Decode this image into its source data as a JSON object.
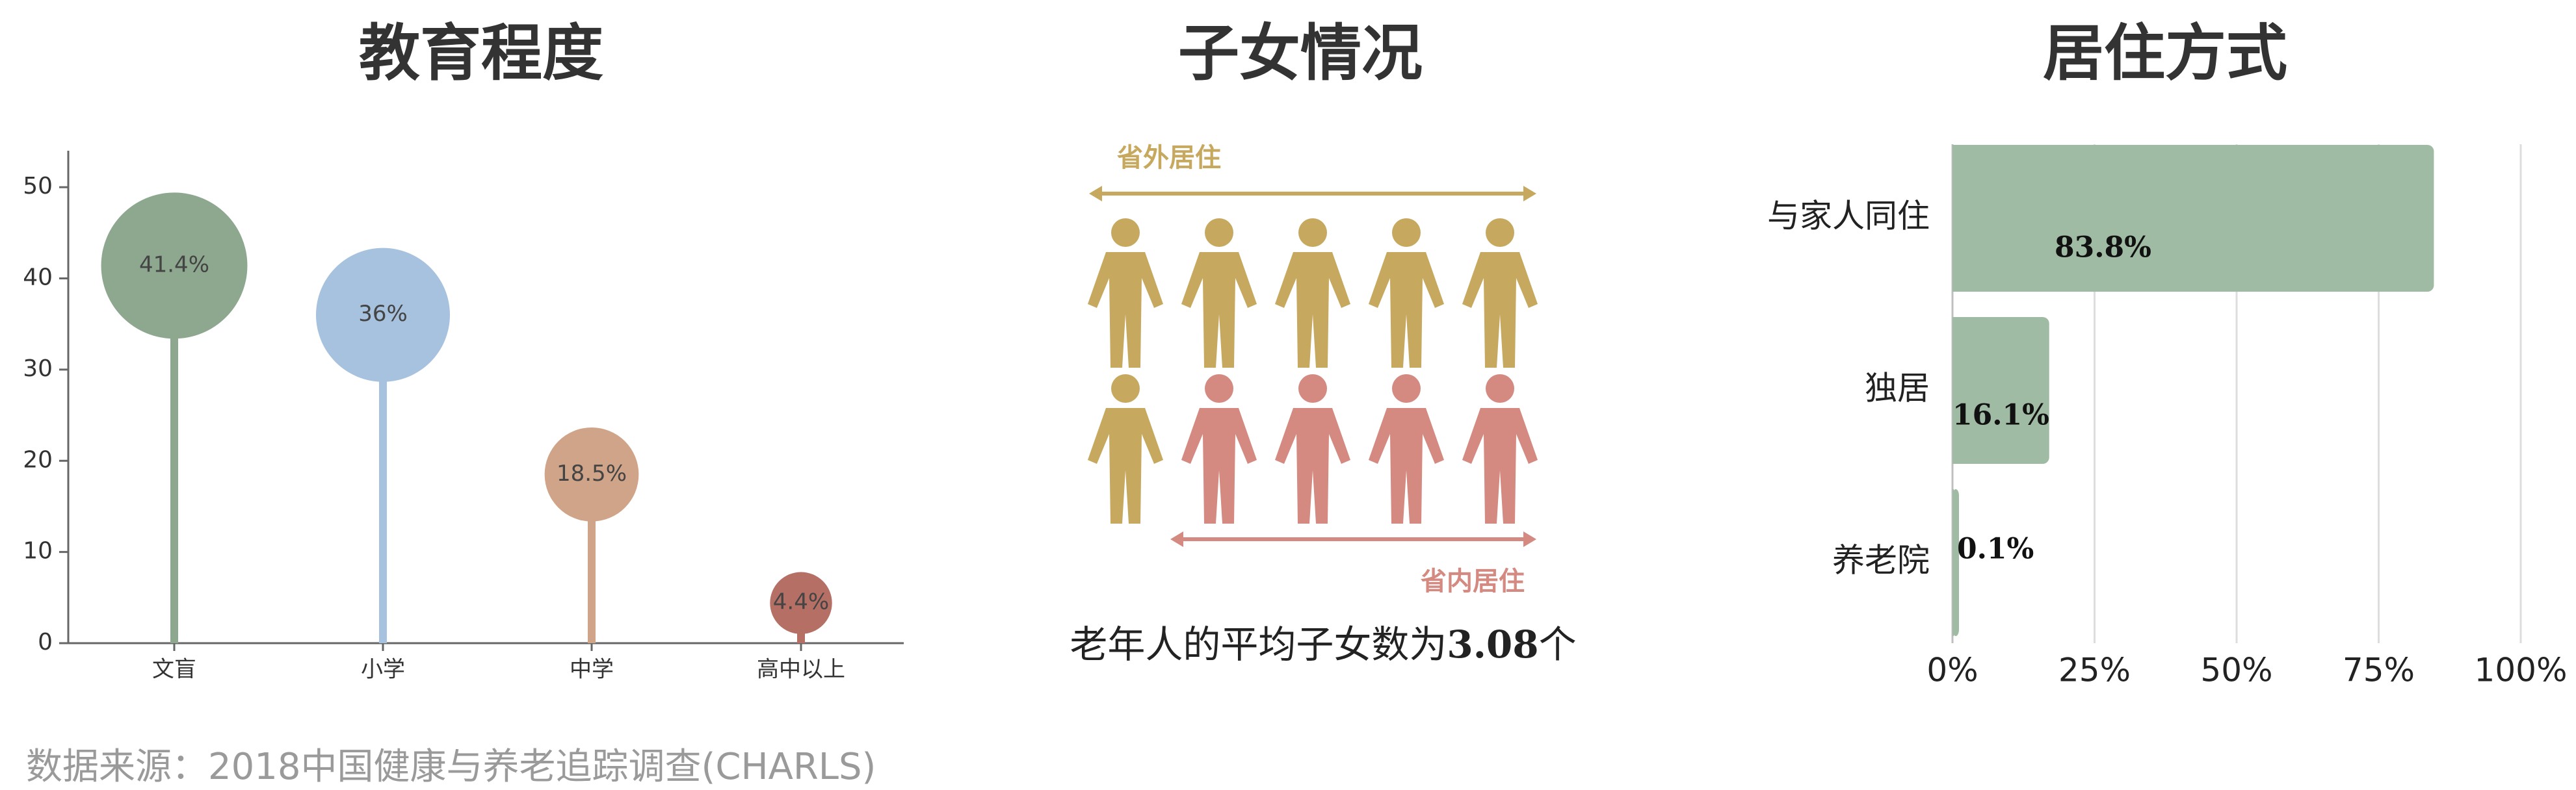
{
  "titles": {
    "education": "教育程度",
    "children": "子女情况",
    "living": "居住方式"
  },
  "colors": {
    "green": "#8da88f",
    "blue": "#a7c2de",
    "tan": "#cfa488",
    "brown": "#b56f64",
    "gold": "#c6a95f",
    "pink": "#d48a80",
    "bar": "#9fbba3",
    "axis": "#666666",
    "grid": "#dddddd"
  },
  "children": {
    "outside_label": "省外居住",
    "inside_label": "省内居住",
    "caption_prefix": "老年人的平均子女数为",
    "caption_value": "3.08",
    "caption_suffix": "个",
    "icon": "person-icon"
  },
  "source": "数据来源：2018中国健康与养老追踪调查(CHARLS)",
  "chart_data": [
    {
      "type": "lollipop",
      "title": "教育程度",
      "categories": [
        "文盲",
        "小学",
        "中学",
        "高中以上"
      ],
      "values": [
        41.4,
        36,
        18.5,
        4.4
      ],
      "labels": [
        "41.4%",
        "36%",
        "18.5%",
        "4.4%"
      ],
      "yticks": [
        0,
        10,
        20,
        30,
        40,
        50
      ],
      "ylim": [
        0,
        54
      ]
    },
    {
      "type": "pictogram",
      "title": "子女情况",
      "rows": [
        {
          "label": "省外居住",
          "gold": 5,
          "pink": 0
        },
        {
          "label": "省内居住",
          "gold": 1,
          "pink": 4
        }
      ],
      "average_children": 3.08
    },
    {
      "type": "bar",
      "orientation": "horizontal",
      "title": "居住方式",
      "categories": [
        "与家人同住",
        "独居",
        "养老院"
      ],
      "values": [
        83.8,
        16.1,
        0.1
      ],
      "labels": [
        "83.8%",
        "16.1%",
        "0.1%"
      ],
      "xticks": [
        "0%",
        "25%",
        "50%",
        "75%",
        "100%"
      ],
      "xlim": [
        0,
        100
      ]
    }
  ]
}
